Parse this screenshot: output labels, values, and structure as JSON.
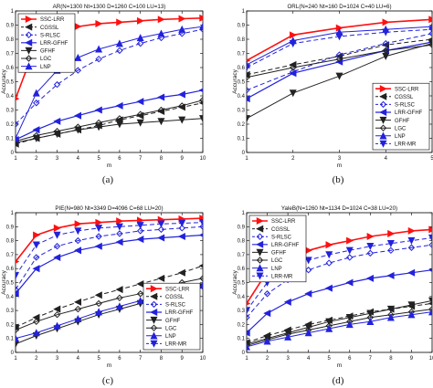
{
  "captions": [
    "(a)",
    "(b)",
    "(c)",
    "(d)"
  ],
  "colors": {
    "SSC-LRR": "#ff1010",
    "CGSSL": "#222222",
    "S-RLSC": "#2222dd",
    "LRR-GFHF": "#2222dd",
    "GFHF": "#222222",
    "LGC": "#222222",
    "LNP": "#2222dd",
    "LRR-MR": "#2222dd"
  },
  "chart_data": [
    {
      "type": "line",
      "title": "AR(N=1300 Nt=1300 D=1260 C=100 LU=13)",
      "xlabel": "m",
      "ylabel": "Accuracy",
      "xlim": [
        1,
        10
      ],
      "ylim": [
        0,
        1
      ],
      "xticks": [
        "1",
        "2",
        "3",
        "4",
        "5",
        "6",
        "7",
        "8",
        "9",
        "10"
      ],
      "yticks": [
        "0",
        "0.1",
        "0.2",
        "0.3",
        "0.4",
        "0.5",
        "0.6",
        "0.7",
        "0.8",
        "0.9",
        "1"
      ],
      "legend_position": "top-left",
      "x": [
        1,
        2,
        3,
        4,
        5,
        6,
        7,
        8,
        9,
        10
      ],
      "series": [
        {
          "name": "SSC-LRR",
          "values": [
            0.38,
            0.77,
            0.85,
            0.89,
            0.91,
            0.92,
            0.93,
            0.94,
            0.945,
            0.95
          ]
        },
        {
          "name": "CGSSL",
          "values": [
            0.06,
            0.1,
            0.13,
            0.16,
            0.19,
            0.23,
            0.26,
            0.29,
            0.32,
            0.35
          ]
        },
        {
          "name": "S-RLSC",
          "values": [
            0.2,
            0.35,
            0.48,
            0.58,
            0.66,
            0.72,
            0.77,
            0.81,
            0.84,
            0.87
          ]
        },
        {
          "name": "LRR-GFHF",
          "values": [
            0.09,
            0.16,
            0.22,
            0.26,
            0.3,
            0.33,
            0.36,
            0.39,
            0.41,
            0.44
          ]
        },
        {
          "name": "GFHF",
          "values": [
            0.07,
            0.1,
            0.13,
            0.16,
            0.18,
            0.2,
            0.21,
            0.22,
            0.23,
            0.24
          ]
        },
        {
          "name": "LGC",
          "values": [
            0.08,
            0.12,
            0.15,
            0.18,
            0.21,
            0.24,
            0.27,
            0.3,
            0.33,
            0.37
          ]
        },
        {
          "name": "LNP",
          "values": [
            0.1,
            0.42,
            0.58,
            0.67,
            0.73,
            0.77,
            0.81,
            0.84,
            0.87,
            0.89
          ]
        }
      ]
    },
    {
      "type": "line",
      "title": "ORL(N=240 Nt=160 D=1024 C=40 LU=6)",
      "xlabel": "m",
      "ylabel": "Accuracy",
      "xlim": [
        1,
        5
      ],
      "ylim": [
        0,
        1
      ],
      "xticks": [
        "1",
        "2",
        "3",
        "4",
        "5"
      ],
      "yticks": [
        "0",
        "0.1",
        "0.2",
        "0.3",
        "0.4",
        "0.5",
        "0.6",
        "0.7",
        "0.8",
        "0.9",
        "1"
      ],
      "legend_position": "bottom-right",
      "x": [
        1,
        2,
        3,
        4,
        5
      ],
      "series": [
        {
          "name": "SSC-LRR",
          "values": [
            0.65,
            0.83,
            0.88,
            0.92,
            0.94
          ]
        },
        {
          "name": "CGSSL",
          "values": [
            0.55,
            0.62,
            0.68,
            0.76,
            0.8
          ]
        },
        {
          "name": "S-RLSC",
          "values": [
            0.44,
            0.57,
            0.69,
            0.77,
            0.84
          ]
        },
        {
          "name": "LRR-GFHF",
          "values": [
            0.38,
            0.56,
            0.64,
            0.72,
            0.78
          ]
        },
        {
          "name": "GFHF",
          "values": [
            0.24,
            0.42,
            0.54,
            0.68,
            0.77
          ]
        },
        {
          "name": "LGC",
          "values": [
            0.53,
            0.6,
            0.66,
            0.72,
            0.76
          ]
        },
        {
          "name": "LNP",
          "values": [
            0.62,
            0.79,
            0.85,
            0.87,
            0.89
          ]
        },
        {
          "name": "LRR-MR",
          "values": [
            0.6,
            0.77,
            0.82,
            0.85,
            0.87
          ]
        }
      ]
    },
    {
      "type": "line",
      "title": "PIE(N=980 Nt=3349 D=4096 C=68 LU=20)",
      "xlabel": "m",
      "ylabel": "Accuracy",
      "xlim": [
        1,
        10
      ],
      "ylim": [
        0,
        1
      ],
      "xticks": [
        "1",
        "2",
        "3",
        "4",
        "5",
        "6",
        "7",
        "8",
        "9",
        "10"
      ],
      "yticks": [
        "0",
        "0.1",
        "0.2",
        "0.3",
        "0.4",
        "0.5",
        "0.6",
        "0.7",
        "0.8",
        "0.9",
        "1"
      ],
      "legend_position": "bottom-right",
      "x": [
        1,
        2,
        3,
        4,
        5,
        6,
        7,
        8,
        9,
        10
      ],
      "series": [
        {
          "name": "SSC-LRR",
          "values": [
            0.65,
            0.84,
            0.89,
            0.92,
            0.93,
            0.94,
            0.945,
            0.95,
            0.955,
            0.96
          ]
        },
        {
          "name": "CGSSL",
          "values": [
            0.18,
            0.25,
            0.31,
            0.36,
            0.41,
            0.45,
            0.49,
            0.53,
            0.57,
            0.62
          ]
        },
        {
          "name": "S-RLSC",
          "values": [
            0.45,
            0.68,
            0.76,
            0.8,
            0.83,
            0.85,
            0.87,
            0.88,
            0.89,
            0.9
          ]
        },
        {
          "name": "LRR-GFHF",
          "values": [
            0.42,
            0.6,
            0.68,
            0.73,
            0.76,
            0.79,
            0.81,
            0.82,
            0.83,
            0.84
          ]
        },
        {
          "name": "GFHF",
          "values": [
            0.06,
            0.12,
            0.17,
            0.22,
            0.27,
            0.31,
            0.35,
            0.39,
            0.43,
            0.47
          ]
        },
        {
          "name": "LGC",
          "values": [
            0.16,
            0.22,
            0.27,
            0.31,
            0.35,
            0.39,
            0.42,
            0.46,
            0.5,
            0.53
          ]
        },
        {
          "name": "LNP",
          "values": [
            0.1,
            0.14,
            0.19,
            0.24,
            0.29,
            0.33,
            0.37,
            0.41,
            0.45,
            0.48
          ]
        },
        {
          "name": "LRR-MR",
          "values": [
            0.55,
            0.77,
            0.84,
            0.87,
            0.89,
            0.9,
            0.91,
            0.92,
            0.925,
            0.93
          ]
        }
      ]
    },
    {
      "type": "line",
      "title": "YaleB(N=1260 Nt=1134 D=1024 C=38 LU=20)",
      "xlabel": "m",
      "ylabel": "Accuracy",
      "xlim": [
        1,
        10
      ],
      "ylim": [
        0,
        1
      ],
      "xticks": [
        "1",
        "2",
        "3",
        "4",
        "5",
        "6",
        "7",
        "8",
        "9",
        "10"
      ],
      "yticks": [
        "0",
        "0.1",
        "0.2",
        "0.3",
        "0.4",
        "0.5",
        "0.6",
        "0.7",
        "0.8",
        "0.9",
        "1"
      ],
      "legend_position": "top-left",
      "x": [
        1,
        2,
        3,
        4,
        5,
        6,
        7,
        8,
        9,
        10
      ],
      "series": [
        {
          "name": "SSC-LRR",
          "values": [
            0.35,
            0.58,
            0.67,
            0.73,
            0.77,
            0.8,
            0.83,
            0.85,
            0.87,
            0.88
          ]
        },
        {
          "name": "CGSSL",
          "values": [
            0.07,
            0.12,
            0.16,
            0.2,
            0.23,
            0.26,
            0.29,
            0.31,
            0.33,
            0.35
          ]
        },
        {
          "name": "S-RLSC",
          "values": [
            0.25,
            0.42,
            0.52,
            0.59,
            0.64,
            0.68,
            0.71,
            0.73,
            0.75,
            0.77
          ]
        },
        {
          "name": "LRR-GFHF",
          "values": [
            0.14,
            0.28,
            0.36,
            0.42,
            0.46,
            0.5,
            0.53,
            0.55,
            0.57,
            0.59
          ]
        },
        {
          "name": "GFHF",
          "values": [
            0.06,
            0.1,
            0.14,
            0.18,
            0.22,
            0.25,
            0.28,
            0.31,
            0.34,
            0.37
          ]
        },
        {
          "name": "LGC",
          "values": [
            0.05,
            0.09,
            0.13,
            0.16,
            0.19,
            0.22,
            0.25,
            0.27,
            0.29,
            0.31
          ]
        },
        {
          "name": "LNP",
          "values": [
            0.04,
            0.08,
            0.11,
            0.14,
            0.17,
            0.2,
            0.22,
            0.25,
            0.27,
            0.29
          ]
        },
        {
          "name": "LRR-MR",
          "values": [
            0.3,
            0.5,
            0.6,
            0.66,
            0.7,
            0.73,
            0.76,
            0.78,
            0.8,
            0.82
          ]
        }
      ]
    }
  ]
}
